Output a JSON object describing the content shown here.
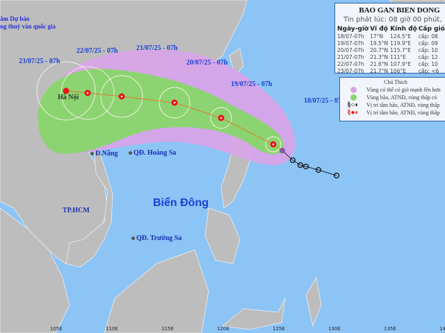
{
  "agency": {
    "line1": "ắm Dự báo",
    "line2": "ng thuỷ văn quốc gia"
  },
  "sea_label": "Biển Đông",
  "places": [
    {
      "name": "Hà Nội"
    },
    {
      "name": "Đ.Nẵng"
    },
    {
      "name": "QĐ. Hoàng Sa"
    },
    {
      "name": "TP.HCM"
    },
    {
      "name": "QĐ. Trường Sa"
    }
  ],
  "track_labels": [
    "18/07/25 - 07h",
    "19/07/25 - 07h",
    "20/07/25 - 07h",
    "21/07/25 - 07h",
    "22/07/25 - 07h",
    "23/07/25 - 07h"
  ],
  "axis_labels": [
    "105E",
    "110E",
    "115E",
    "120E",
    "125E",
    "130E",
    "135E",
    "140E"
  ],
  "info": {
    "title": "BAO GAN BIEN DONG",
    "issued": "Tin phát lúc: 08 giờ 00 phút, 18",
    "headers": [
      "Ngày-giờ",
      "Vĩ độ",
      "Kinh độ",
      "Cấp gió",
      "V"
    ],
    "rows": [
      [
        "18/07-07h",
        "17°N",
        "124.5°E",
        "cấp: 08",
        "65"
      ],
      [
        "19/07-07h",
        "19.5°N",
        "119.9°E",
        "cấp: 09",
        "76"
      ],
      [
        "20/07-07h",
        "20.7°N",
        "115.7°E",
        "cấp: 10",
        "93"
      ],
      [
        "21/07-07h",
        "21.3°N",
        "111°E",
        "cấp: 12",
        "12"
      ],
      [
        "22/07-07h",
        "21.6°N",
        "107.9°E",
        "cấp: 10",
        "93"
      ],
      [
        "23/07-07h",
        "21.7°N",
        "106°E",
        "cấp: <6",
        "20"
      ]
    ]
  },
  "legend": {
    "title": "Chú Thích",
    "items": [
      {
        "text": "Vùng có thể có gió mạnh lên hơn",
        "color": "#d9a3e8"
      },
      {
        "text": "Vùng bão, ATNĐ, vùng thấp có",
        "color": "#88d66a"
      },
      {
        "text": "Vị trí tâm bão, ATNĐ, vùng thấp",
        "color": "#111111"
      },
      {
        "text": "Vị trí tâm bão, ATNĐ, vùng thấp",
        "color": "#e8141a"
      }
    ]
  },
  "colors": {
    "sea": "#8cc4f5",
    "land": "#bdbdbd",
    "risk_zone": "#d9a3e8",
    "storm_zone": "#88d66a",
    "forecast": "#e8141a",
    "past": "#111111"
  }
}
